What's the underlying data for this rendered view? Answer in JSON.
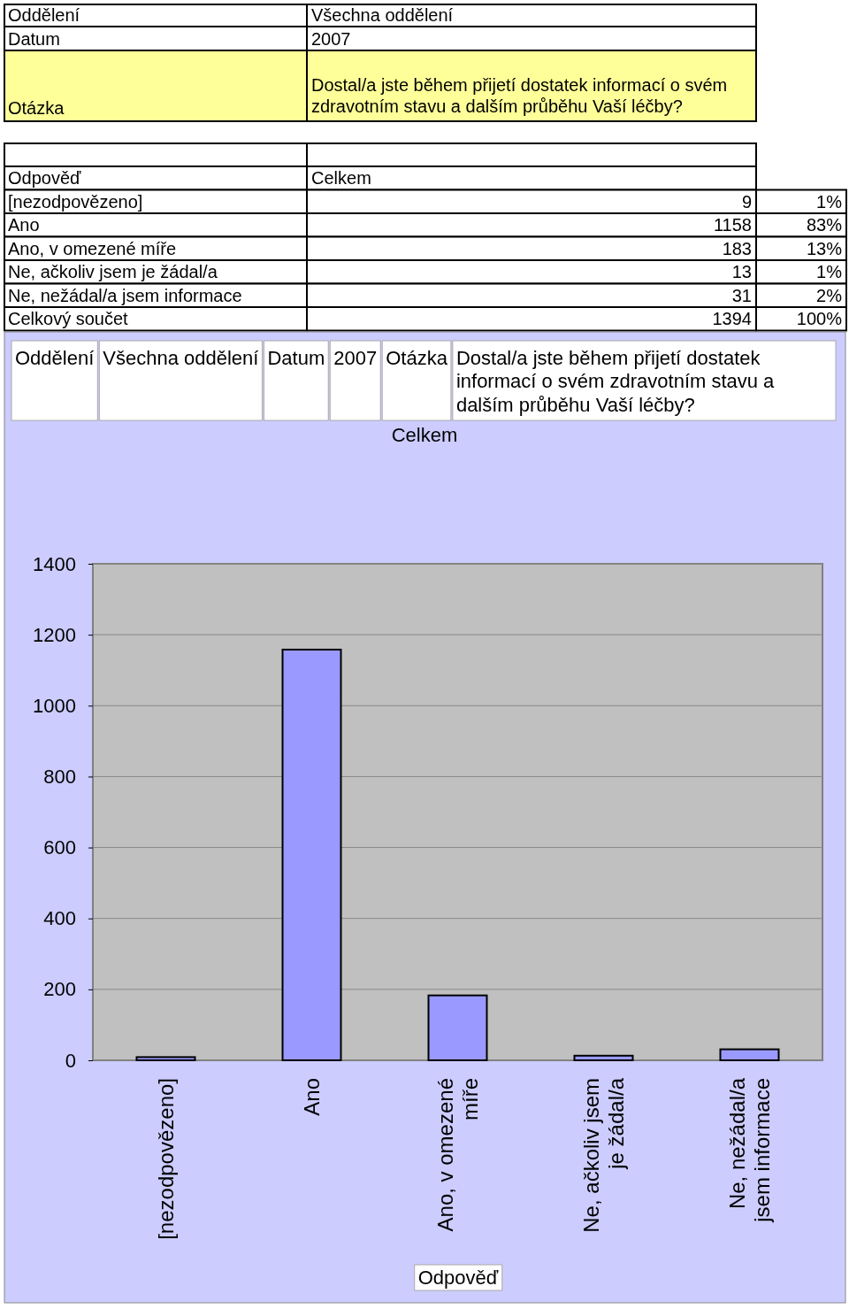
{
  "chart_data": {
    "type": "bar",
    "title": "Celkem",
    "xlabel": "Odpověď",
    "categories": [
      "[nezodpovězeno]",
      "Ano",
      "Ano, v omezené míře",
      "Ne, ačkoliv jsem je žádal/a",
      "Ne, nežádal/a jsem informace"
    ],
    "values": [
      9,
      1158,
      183,
      13,
      31
    ],
    "color": "#9999ff",
    "ylim": [
      0,
      1400
    ],
    "yticks": [
      0,
      200,
      400,
      600,
      800,
      1000,
      1200,
      1400
    ],
    "grid": "y",
    "annotations": [
      "Oddělení",
      "Všechna oddělení",
      "Datum",
      "2007",
      "Otázka",
      "Dostal/a jste během přijetí dostatek informací o svém zdravotním stavu a dalším průběhu Vaší  léčby?",
      "1%",
      "83%",
      "13%",
      "1%",
      "2%",
      "Celkový součet",
      "1394",
      "100%",
      "9",
      "1158",
      "183",
      "13",
      "31"
    ]
  }
}
